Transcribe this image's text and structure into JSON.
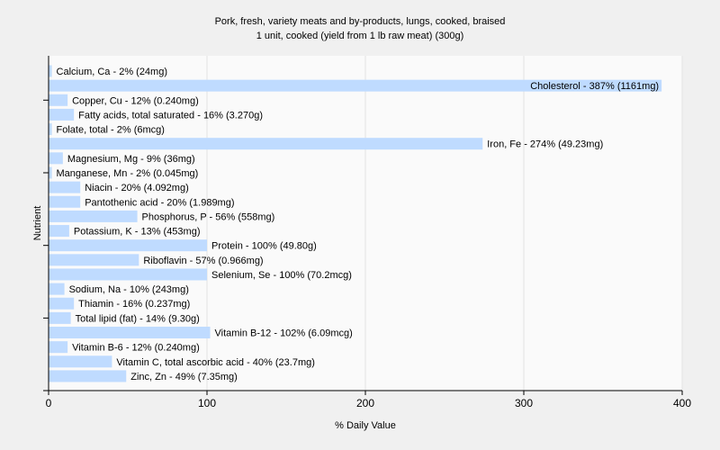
{
  "chart_data": {
    "type": "bar",
    "orientation": "horizontal",
    "title": "Pork, fresh, variety meats and by-products, lungs, cooked, braised",
    "subtitle": "1 unit, cooked (yield from 1 lb raw meat) (300g)",
    "xlabel": "% Daily Value",
    "ylabel": "Nutrient",
    "xlim": [
      0,
      400
    ],
    "xticks": [
      0,
      100,
      200,
      300,
      400
    ],
    "grid": true,
    "bar_color": "#bfdbff",
    "categories": [
      "Calcium, Ca",
      "Cholesterol",
      "Copper, Cu",
      "Fatty acids, total saturated",
      "Folate, total",
      "Iron, Fe",
      "Magnesium, Mg",
      "Manganese, Mn",
      "Niacin",
      "Pantothenic acid",
      "Phosphorus, P",
      "Potassium, K",
      "Protein",
      "Riboflavin",
      "Selenium, Se",
      "Sodium, Na",
      "Thiamin",
      "Total lipid (fat)",
      "Vitamin B-12",
      "Vitamin B-6",
      "Vitamin C, total ascorbic acid",
      "Zinc, Zn"
    ],
    "values": [
      2,
      387,
      12,
      16,
      2,
      274,
      9,
      2,
      20,
      20,
      56,
      13,
      100,
      57,
      100,
      10,
      16,
      14,
      102,
      12,
      40,
      49
    ],
    "labels": [
      "Calcium, Ca - 2% (24mg)",
      "Cholesterol - 387% (1161mg)",
      "Copper, Cu - 12% (0.240mg)",
      "Fatty acids, total saturated - 16% (3.270g)",
      "Folate, total - 2% (6mcg)",
      "Iron, Fe - 274% (49.23mg)",
      "Magnesium, Mg - 9% (36mg)",
      "Manganese, Mn - 2% (0.045mg)",
      "Niacin - 20% (4.092mg)",
      "Pantothenic acid - 20% (1.989mg)",
      "Phosphorus, P - 56% (558mg)",
      "Potassium, K - 13% (453mg)",
      "Protein - 100% (49.80g)",
      "Riboflavin - 57% (0.966mg)",
      "Selenium, Se - 100% (70.2mcg)",
      "Sodium, Na - 10% (243mg)",
      "Thiamin - 16% (0.237mg)",
      "Total lipid (fat) - 14% (9.30g)",
      "Vitamin B-12 - 102% (6.09mcg)",
      "Vitamin B-6 - 12% (0.240mg)",
      "Vitamin C, total ascorbic acid - 40% (23.7mg)",
      "Zinc, Zn - 49% (7.35mg)"
    ]
  }
}
